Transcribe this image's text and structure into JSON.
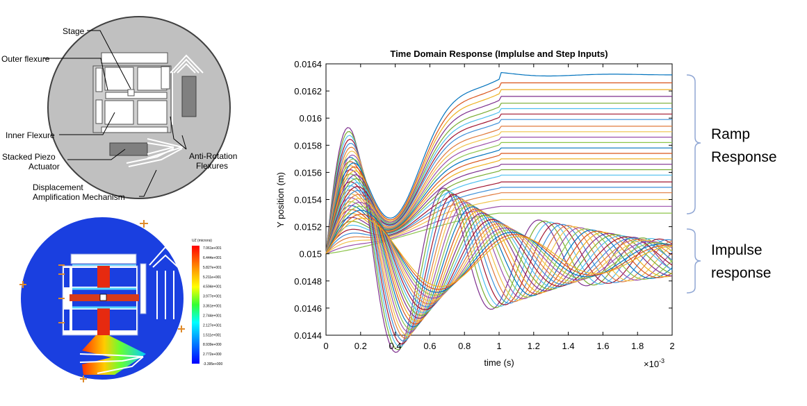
{
  "device_diagram": {
    "labels": {
      "stage": "Stage",
      "outer_flexure": "Outer flexure",
      "inner_flexure": "Inner Flexure",
      "piezo_line1": "Stacked Piezo",
      "piezo_line2": "Actuator",
      "anti_rotation_line1": "Anti-Rotation",
      "anti_rotation_line2": "Flexures",
      "amplification_line1": "Displacement",
      "amplification_line2": "Amplification Mechanism"
    },
    "colors": {
      "disk": "#c0c0c0",
      "actuator": "#7f7f7f"
    }
  },
  "fea_plot": {
    "legend_title": "UZ (microns)",
    "legend_values": [
      "7.061e+001",
      "6.444e+001",
      "5.827e+001",
      "5.211e+001",
      "4.594e+001",
      "3.977e+001",
      "3.361e+001",
      "2.744e+001",
      "2.127e+001",
      "1.511e+001",
      "8.939e+000",
      "2.772e+000",
      "-3.395e+000"
    ],
    "colors": {
      "disk": "#1a3fe0",
      "hot": "#ee2200",
      "load_arrow": "#e08a2a"
    }
  },
  "chart_data": {
    "type": "line",
    "title": "Time Domain Response (Implulse and Step Inputs)",
    "xlabel": "time (s)",
    "ylabel": "Y position (m)",
    "x_multiplier": "×10",
    "x_multiplier_exp": "-3",
    "xlim": [
      0,
      0.002
    ],
    "ylim": [
      0.0144,
      0.0164
    ],
    "x_ticks": [
      0,
      0.0002,
      0.0004,
      0.0006,
      0.0008,
      0.001,
      0.0012,
      0.0014,
      0.0016,
      0.0018,
      0.002
    ],
    "x_tick_labels": [
      "0",
      "0.2",
      "0.4",
      "0.6",
      "0.8",
      "1",
      "1.2",
      "1.4",
      "1.6",
      "1.8",
      "2"
    ],
    "y_ticks": [
      0.0144,
      0.0146,
      0.0148,
      0.015,
      0.0152,
      0.0154,
      0.0156,
      0.0158,
      0.016,
      0.0162,
      0.0164
    ],
    "y_tick_labels": [
      "0.0144",
      "0.0146",
      "0.0148",
      "0.015",
      "0.0152",
      "0.0154",
      "0.0156",
      "0.0158",
      "0.016",
      "0.0162",
      "0.0164"
    ],
    "grid": false,
    "annotations": [
      {
        "group": "ramp",
        "line1": "Ramp",
        "line2": "Response",
        "y_range": [
          0.01529,
          0.01642
        ]
      },
      {
        "group": "impulse",
        "line1": "Impulse",
        "line2": "response",
        "y_range": [
          0.01463,
          0.0152
        ]
      }
    ],
    "series_groups": {
      "start_value": 0.015,
      "ramp": {
        "settle_time": 0.001,
        "final_values": [
          0.01632,
          0.01626,
          0.01621,
          0.01616,
          0.01611,
          0.01607,
          0.01603,
          0.01599,
          0.01594,
          0.0159,
          0.01586,
          0.01582,
          0.01578,
          0.01574,
          0.0157,
          0.01566,
          0.01562,
          0.01558,
          0.01553,
          0.01549,
          0.01545,
          0.0154,
          0.01535,
          0.0153
        ],
        "early_peaks": [
          {
            "time": 0.0001,
            "value": 0.0158
          },
          {
            "time": 0.00015,
            "value": 0.01595
          }
        ]
      },
      "impulse": {
        "final_value": 0.01497,
        "min_trough": {
          "time": 0.0004,
          "value": 0.01442
        },
        "max_peak": {
          "time": 0.0001,
          "value": 0.0158
        },
        "count": 24
      }
    },
    "palette": [
      "#0072BD",
      "#D95319",
      "#EDB120",
      "#7E2F8E",
      "#77AC30",
      "#4DBEEE",
      "#A2142F",
      "#3b8ed8",
      "#e07a3c",
      "#f0c24a",
      "#9b4faa",
      "#8cc44a"
    ]
  }
}
